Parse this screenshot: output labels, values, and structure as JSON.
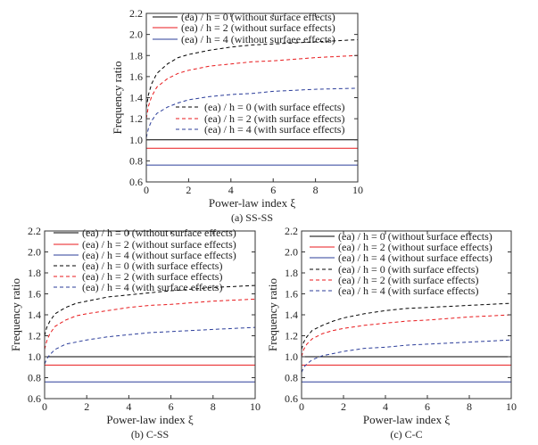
{
  "chart_data": [
    {
      "type": "line",
      "caption": "(a) SS-SS",
      "xlabel": "Power-law index ξ",
      "ylabel": "Frequency ratio",
      "xlim": [
        0,
        10
      ],
      "ylim": [
        0.6,
        2.2
      ],
      "xticks": [
        "0",
        "2",
        "4",
        "6",
        "8",
        "10"
      ],
      "yticks": [
        "0.6",
        "0.8",
        "1.0",
        "1.2",
        "1.4",
        "1.6",
        "1.8",
        "2.0",
        "2.2"
      ],
      "grid": false,
      "legend_placement": "split: solid top, dashed middle-right",
      "x": [
        0,
        0.1,
        0.25,
        0.5,
        1,
        1.5,
        2,
        3,
        4,
        5,
        6,
        8,
        10
      ],
      "series": [
        {
          "name": "(ea) / h = 0 (without surface effects)",
          "color": "#000000",
          "style": "solid",
          "values": [
            1.0,
            1.0,
            1.0,
            1.0,
            1.0,
            1.0,
            1.0,
            1.0,
            1.0,
            1.0,
            1.0,
            1.0,
            1.0
          ]
        },
        {
          "name": "(ea) / h = 2 (without surface effects)",
          "color": "#e8191c",
          "style": "solid",
          "values": [
            0.92,
            0.92,
            0.92,
            0.92,
            0.92,
            0.92,
            0.92,
            0.92,
            0.92,
            0.92,
            0.92,
            0.92,
            0.92
          ]
        },
        {
          "name": "(ea) / h = 4 (without surfaee effects)",
          "color": "#2b3d9a",
          "style": "solid",
          "values": [
            0.76,
            0.76,
            0.76,
            0.76,
            0.76,
            0.76,
            0.76,
            0.76,
            0.76,
            0.76,
            0.76,
            0.76,
            0.76
          ]
        },
        {
          "name": "(ea) / h = 0 (with surface effects)",
          "color": "#000000",
          "style": "dashed",
          "values": [
            1.3,
            1.43,
            1.53,
            1.63,
            1.72,
            1.78,
            1.81,
            1.85,
            1.88,
            1.9,
            1.91,
            1.93,
            1.95
          ]
        },
        {
          "name": "(ea) / h = 2 (with surface effects)",
          "color": "#e8191c",
          "style": "dashed",
          "values": [
            1.2,
            1.32,
            1.41,
            1.5,
            1.58,
            1.63,
            1.66,
            1.7,
            1.72,
            1.74,
            1.75,
            1.78,
            1.8
          ]
        },
        {
          "name": "(ea) / h = 4 (with surface effects)",
          "color": "#2b3d9a",
          "style": "dashed",
          "values": [
            1.02,
            1.11,
            1.18,
            1.25,
            1.31,
            1.35,
            1.38,
            1.41,
            1.43,
            1.44,
            1.46,
            1.48,
            1.49
          ]
        }
      ]
    },
    {
      "type": "line",
      "caption": "(b) C-SS",
      "xlabel": "Power-law index ξ",
      "ylabel": "Frequency ratio",
      "xlim": [
        0,
        10
      ],
      "ylim": [
        0.6,
        2.2
      ],
      "xticks": [
        "0",
        "2",
        "4",
        "6",
        "8",
        "10"
      ],
      "yticks": [
        "0.6",
        "0.8",
        "1.0",
        "1.2",
        "1.4",
        "1.6",
        "1.8",
        "2.0",
        "2.2"
      ],
      "grid": false,
      "legend_placement": "top",
      "x": [
        0,
        0.1,
        0.25,
        0.5,
        1,
        1.5,
        2,
        3,
        4,
        5,
        6,
        8,
        10
      ],
      "series": [
        {
          "name": "(ea) / h = 0 (without surface effects)",
          "color": "#000000",
          "style": "solid",
          "values": [
            1.0,
            1.0,
            1.0,
            1.0,
            1.0,
            1.0,
            1.0,
            1.0,
            1.0,
            1.0,
            1.0,
            1.0,
            1.0
          ]
        },
        {
          "name": "(ea) / h = 2 (without surface effects)",
          "color": "#e8191c",
          "style": "solid",
          "values": [
            0.92,
            0.92,
            0.92,
            0.92,
            0.92,
            0.92,
            0.92,
            0.92,
            0.92,
            0.92,
            0.92,
            0.92,
            0.92
          ]
        },
        {
          "name": "(ea) / h = 4 (without surface effects)",
          "color": "#2b3d9a",
          "style": "solid",
          "values": [
            0.76,
            0.76,
            0.76,
            0.76,
            0.76,
            0.76,
            0.76,
            0.76,
            0.76,
            0.76,
            0.76,
            0.76,
            0.76
          ]
        },
        {
          "name": "(ea) / h = 0 (with surface effects)",
          "color": "#000000",
          "style": "dashed",
          "values": [
            1.2,
            1.28,
            1.34,
            1.41,
            1.47,
            1.51,
            1.53,
            1.57,
            1.59,
            1.61,
            1.63,
            1.66,
            1.68
          ]
        },
        {
          "name": "(ea) / h = 2 (with surface effects)",
          "color": "#e8191c",
          "style": "dashed",
          "values": [
            1.07,
            1.15,
            1.22,
            1.29,
            1.35,
            1.39,
            1.41,
            1.44,
            1.47,
            1.49,
            1.5,
            1.53,
            1.55
          ]
        },
        {
          "name": "(ea) / h = 4 (with surface effects)",
          "color": "#2b3d9a",
          "style": "dashed",
          "values": [
            0.93,
            0.98,
            1.02,
            1.07,
            1.12,
            1.14,
            1.16,
            1.19,
            1.21,
            1.23,
            1.24,
            1.26,
            1.28
          ]
        }
      ]
    },
    {
      "type": "line",
      "caption": "(c) C-C",
      "xlabel": "Power-law index ξ",
      "ylabel": "Frequency ratio",
      "xlim": [
        0,
        10
      ],
      "ylim": [
        0.6,
        2.2
      ],
      "xticks": [
        "0",
        "2",
        "4",
        "6",
        "8",
        "10"
      ],
      "yticks": [
        "0.6",
        "0.8",
        "1.0",
        "1.2",
        "1.4",
        "1.6",
        "1.8",
        "2.0",
        "2.2"
      ],
      "grid": false,
      "legend_placement": "top",
      "x": [
        0,
        0.1,
        0.25,
        0.5,
        1,
        1.5,
        2,
        3,
        4,
        5,
        6,
        8,
        10
      ],
      "series": [
        {
          "name": "(ea) / h = 0 (without surface effects)",
          "color": "#000000",
          "style": "solid",
          "values": [
            1.0,
            1.0,
            1.0,
            1.0,
            1.0,
            1.0,
            1.0,
            1.0,
            1.0,
            1.0,
            1.0,
            1.0,
            1.0
          ]
        },
        {
          "name": "(ea) / h = 2 (without surface effects)",
          "color": "#e8191c",
          "style": "solid",
          "values": [
            0.92,
            0.92,
            0.92,
            0.92,
            0.92,
            0.92,
            0.92,
            0.92,
            0.92,
            0.92,
            0.92,
            0.92,
            0.92
          ]
        },
        {
          "name": "(ea) / h = 4 (without surface effects)",
          "color": "#2b3d9a",
          "style": "solid",
          "values": [
            0.76,
            0.76,
            0.76,
            0.76,
            0.76,
            0.76,
            0.76,
            0.76,
            0.76,
            0.76,
            0.76,
            0.76,
            0.76
          ]
        },
        {
          "name": "(ea) / h = 0 (with surface effects)",
          "color": "#000000",
          "style": "dashed",
          "values": [
            1.07,
            1.14,
            1.19,
            1.25,
            1.3,
            1.34,
            1.37,
            1.41,
            1.44,
            1.46,
            1.47,
            1.49,
            1.51
          ]
        },
        {
          "name": "(ea) / h = 2 (with surface effects)",
          "color": "#e8191c",
          "style": "dashed",
          "values": [
            1.0,
            1.07,
            1.12,
            1.17,
            1.22,
            1.25,
            1.27,
            1.3,
            1.32,
            1.34,
            1.35,
            1.38,
            1.4
          ]
        },
        {
          "name": "(ea) / h = 4 (with surface effects)",
          "color": "#2b3d9a",
          "style": "dashed",
          "values": [
            0.85,
            0.9,
            0.93,
            0.97,
            1.01,
            1.03,
            1.05,
            1.08,
            1.09,
            1.11,
            1.12,
            1.14,
            1.16
          ]
        }
      ]
    }
  ]
}
